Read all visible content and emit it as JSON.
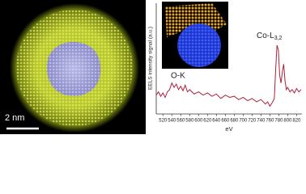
{
  "image": {
    "scale_bar_label": "2 nm"
  },
  "chart_data": {
    "type": "line",
    "x_label": "eV",
    "y_label": "EELS intensity signal (a.u.)",
    "annotations": [
      {
        "text": "O-K"
      },
      {
        "text": "Co-L",
        "subscript": "3,2"
      }
    ],
    "x": [
      505,
      510,
      515,
      520,
      525,
      530,
      535,
      540,
      545,
      550,
      555,
      560,
      565,
      570,
      575,
      580,
      590,
      600,
      610,
      620,
      630,
      640,
      650,
      660,
      670,
      680,
      690,
      700,
      710,
      720,
      730,
      740,
      750,
      755,
      760,
      765,
      770,
      773,
      776,
      779,
      782,
      785,
      788,
      791,
      794,
      797,
      800,
      805,
      810,
      815,
      820,
      825,
      830
    ],
    "series": [
      {
        "color": "#b0203a",
        "values": [
          17,
          20,
          16,
          19,
          15,
          20,
          22,
          28,
          24,
          27,
          22,
          25,
          21,
          26,
          20,
          22,
          18,
          20,
          17,
          19,
          16,
          18,
          14,
          17,
          15,
          16,
          13,
          15,
          12,
          14,
          11,
          13,
          9,
          11,
          7,
          10,
          14,
          40,
          62,
          58,
          35,
          28,
          38,
          45,
          30,
          22,
          24,
          20,
          22,
          19,
          23,
          20,
          22
        ]
      }
    ],
    "xlim": [
      505,
      832
    ],
    "ylim": [
      0,
      100
    ],
    "xticks": [
      520,
      540,
      560,
      580,
      600,
      620,
      640,
      660,
      680,
      700,
      720,
      740,
      760,
      780,
      800,
      820
    ]
  }
}
